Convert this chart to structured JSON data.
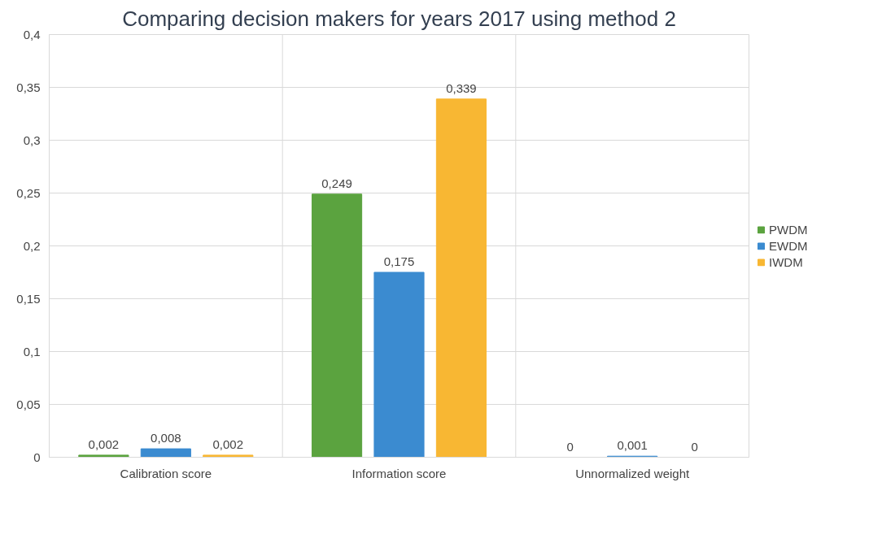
{
  "chart_data": {
    "type": "bar",
    "title": "Comparing decision makers for years 2017 using method 2",
    "categories": [
      "Calibration score",
      "Information score",
      "Unnormalized weight"
    ],
    "series": [
      {
        "name": "PWDM",
        "color": "#5ba33f",
        "values": [
          0.002,
          0.249,
          0
        ],
        "value_labels": [
          "0,002",
          "0,249",
          "0"
        ]
      },
      {
        "name": "EWDM",
        "color": "#3b8bd0",
        "values": [
          0.008,
          0.175,
          0.001
        ],
        "value_labels": [
          "0,008",
          "0,175",
          "0,001"
        ]
      },
      {
        "name": "IWDM",
        "color": "#f8b733",
        "values": [
          0.002,
          0.339,
          0
        ],
        "value_labels": [
          "0,002",
          "0,339",
          "0"
        ]
      }
    ],
    "ylim": [
      0,
      0.4
    ],
    "yticks": [
      0,
      {
        "value": 0.05,
        "label": "0,05"
      },
      {
        "value": 0.1,
        "label": "0,1"
      },
      {
        "value": 0.15,
        "label": "0,15"
      },
      {
        "value": 0.2,
        "label": "0,2"
      },
      {
        "value": 0.25,
        "label": "0,25"
      },
      {
        "value": 0.3,
        "label": "0,3"
      },
      {
        "value": 0.35,
        "label": "0,35"
      },
      {
        "value": 0.4,
        "label": "0,4"
      }
    ],
    "grid": true,
    "legend": "right"
  }
}
